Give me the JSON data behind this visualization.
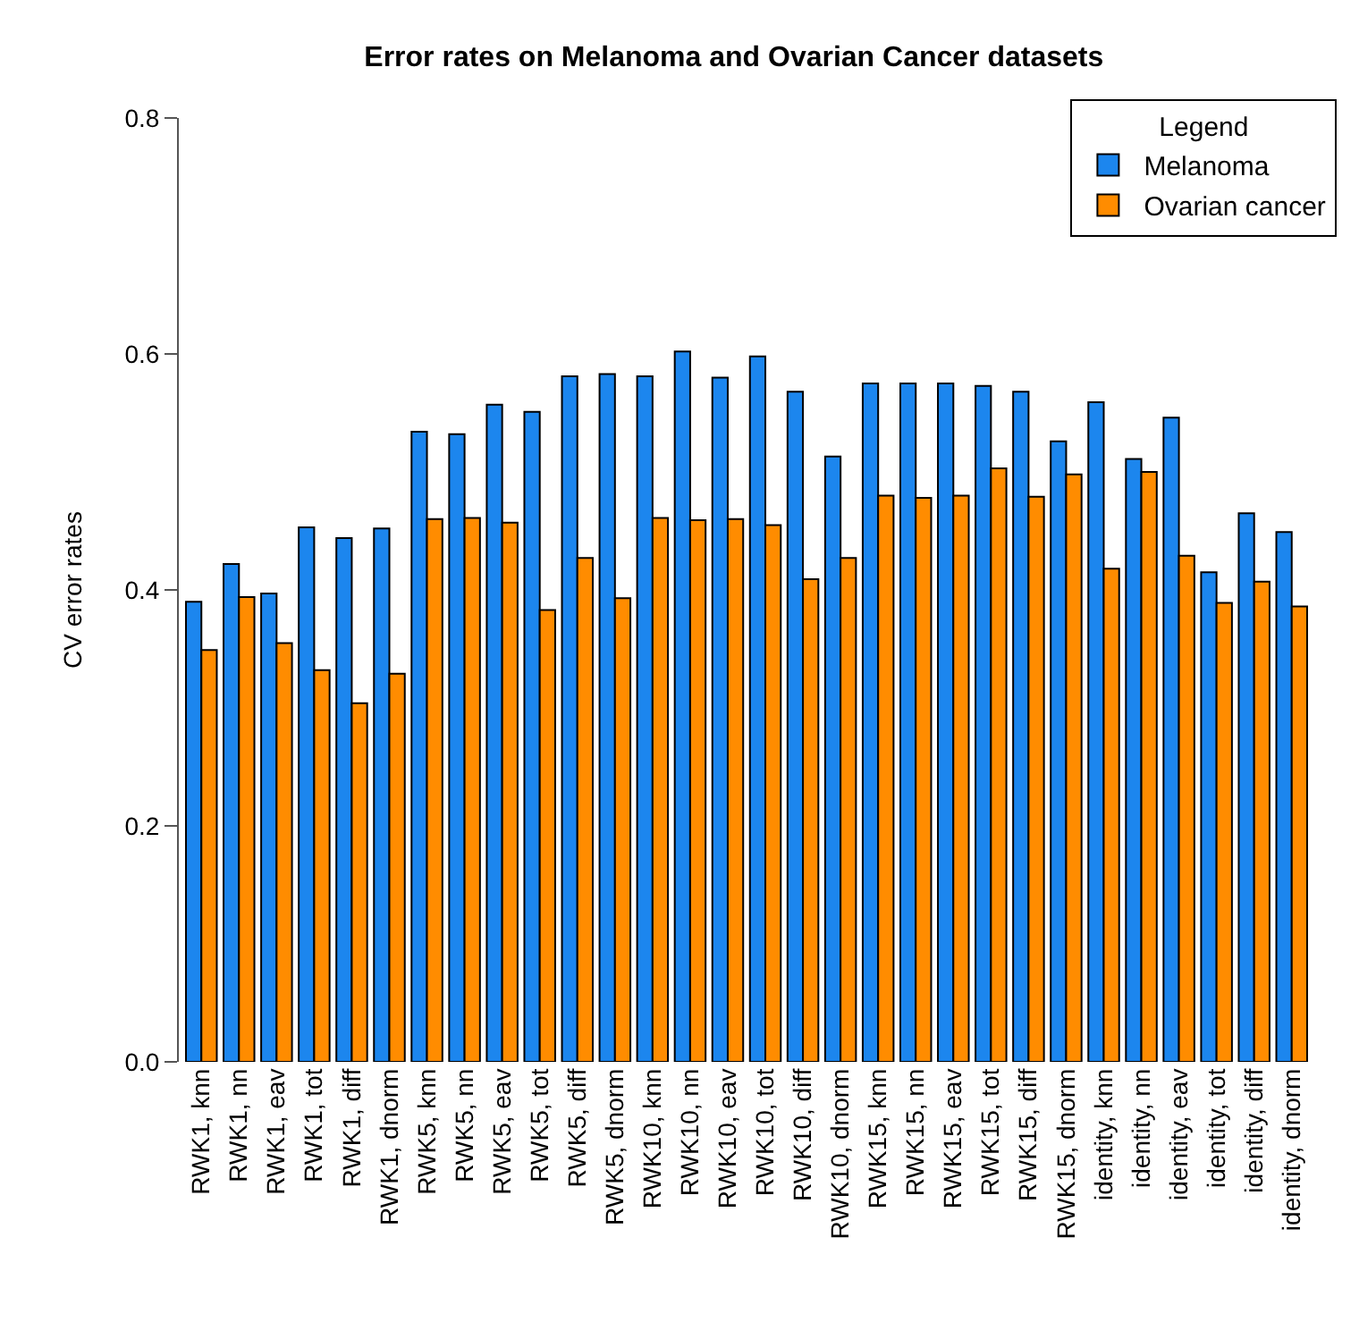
{
  "chart_data": {
    "type": "bar",
    "title": "Error rates on Melanoma and Ovarian Cancer datasets",
    "ylabel": "CV error rates",
    "legend_title": "Legend",
    "categories": [
      "RWK1, knn",
      "RWK1, nn",
      "RWK1, eav",
      "RWK1, tot",
      "RWK1, diff",
      "RWK1, dnorm",
      "RWK5, knn",
      "RWK5, nn",
      "RWK5, eav",
      "RWK5, tot",
      "RWK5, diff",
      "RWK5, dnorm",
      "RWK10, knn",
      "RWK10, nn",
      "RWK10, eav",
      "RWK10, tot",
      "RWK10, diff",
      "RWK10, dnorm",
      "RWK15, knn",
      "RWK15, nn",
      "RWK15, eav",
      "RWK15, tot",
      "RWK15, diff",
      "RWK15, dnorm",
      "identity, knn",
      "identity, nn",
      "identity, eav",
      "identity, tot",
      "identity, diff",
      "identity, dnorm"
    ],
    "series": [
      {
        "name": "Melanoma",
        "color": "#1c86ee",
        "values": [
          0.39,
          0.422,
          0.397,
          0.453,
          0.444,
          0.452,
          0.534,
          0.532,
          0.557,
          0.551,
          0.581,
          0.583,
          0.581,
          0.602,
          0.58,
          0.598,
          0.568,
          0.513,
          0.575,
          0.575,
          0.575,
          0.573,
          0.568,
          0.526,
          0.559,
          0.511,
          0.546,
          0.415,
          0.465,
          0.449
        ]
      },
      {
        "name": "Ovarian cancer",
        "color": "#ff8c00",
        "values": [
          0.349,
          0.394,
          0.355,
          0.332,
          0.304,
          0.329,
          0.46,
          0.461,
          0.457,
          0.383,
          0.427,
          0.393,
          0.461,
          0.459,
          0.46,
          0.455,
          0.409,
          0.427,
          0.48,
          0.478,
          0.48,
          0.503,
          0.479,
          0.498,
          0.418,
          0.5,
          0.429,
          0.389,
          0.407,
          0.386
        ]
      }
    ],
    "ylim": [
      0,
      0.8
    ],
    "yticks": [
      {
        "value": 0,
        "label": "0.0"
      },
      {
        "value": 0.2,
        "label": "0.2"
      },
      {
        "value": 0.4,
        "label": "0.4"
      },
      {
        "value": 0.6,
        "label": "0.6"
      },
      {
        "value": 0.8,
        "label": "0.8"
      }
    ],
    "grid": false,
    "legend": "top right"
  }
}
